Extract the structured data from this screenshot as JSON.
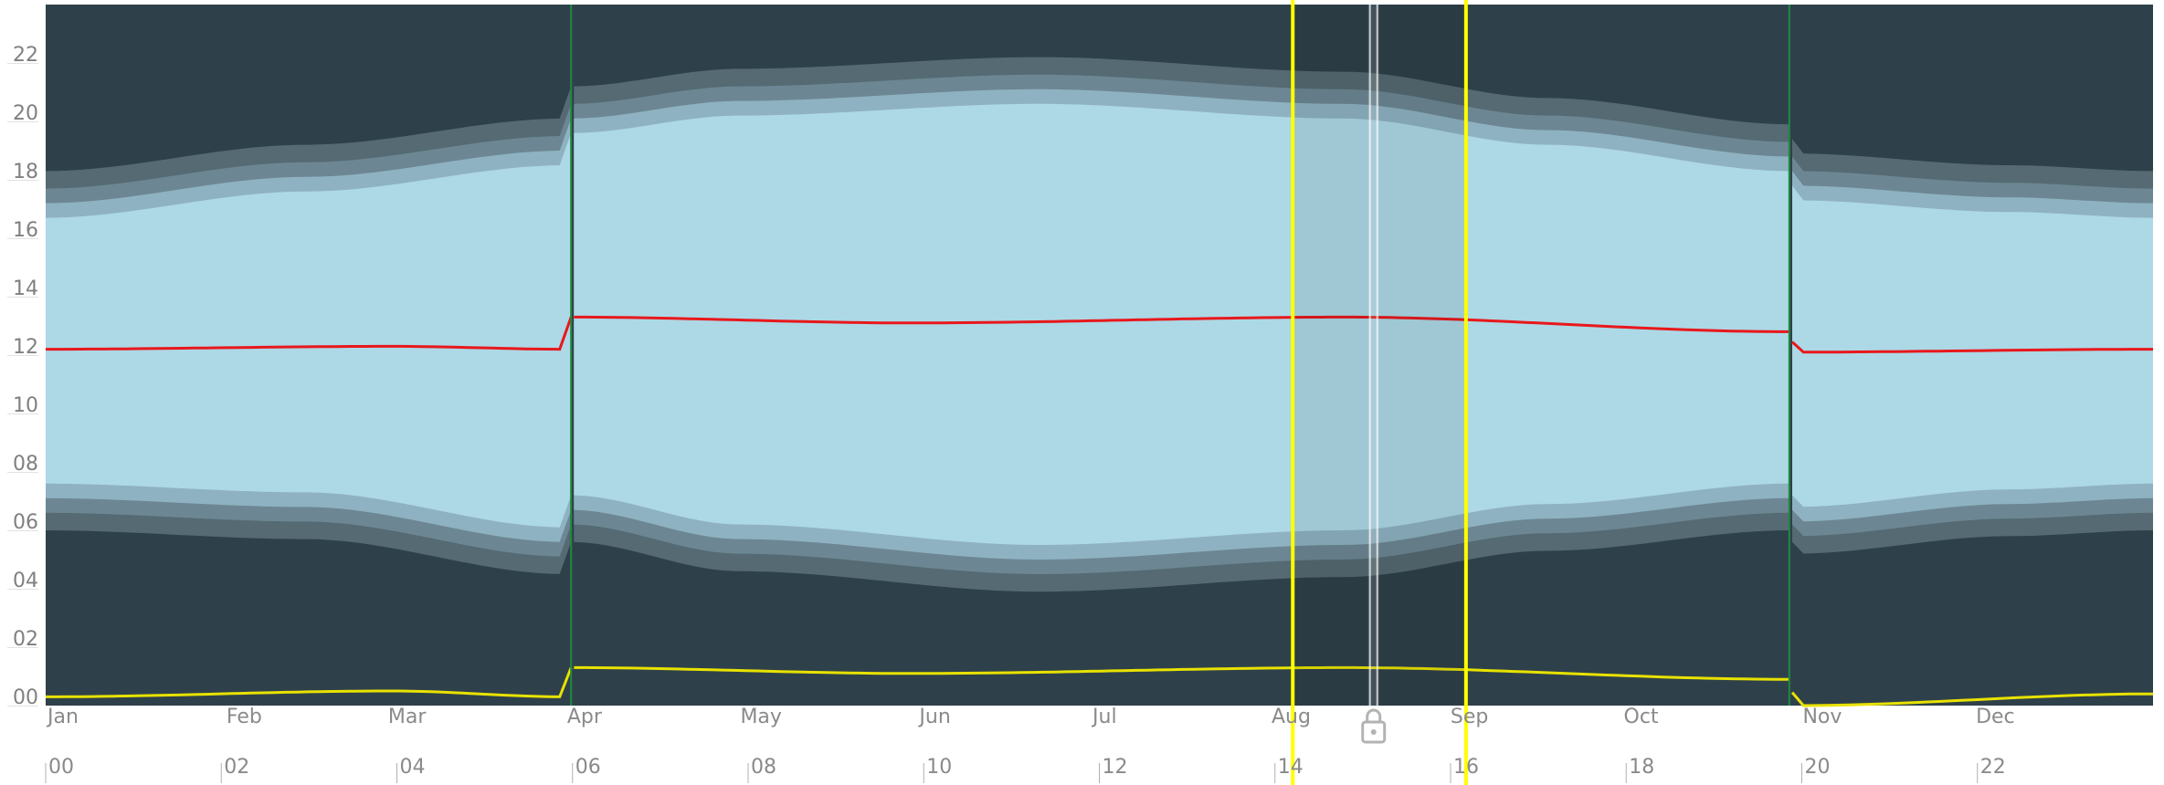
{
  "chart_data": {
    "type": "area",
    "title": "",
    "xlabel": "",
    "ylabel": "",
    "x_unit": "day_of_year",
    "ylim": [
      0,
      24
    ],
    "y_ticks": [
      "00",
      "02",
      "04",
      "06",
      "08",
      "10",
      "12",
      "14",
      "16",
      "18",
      "20",
      "22"
    ],
    "month_ticks": [
      "Jan",
      "Feb",
      "Mar",
      "Apr",
      "May",
      "Jun",
      "Jul",
      "Aug",
      "Sep",
      "Oct",
      "Nov",
      "Dec"
    ],
    "hour_ticks": [
      "00",
      "02",
      "04",
      "06",
      "08",
      "10",
      "12",
      "14",
      "16",
      "18",
      "20",
      "22"
    ],
    "timezone_changes_day": [
      91,
      302
    ],
    "series": [
      {
        "role": "sunrise",
        "x": [
          0,
          45,
          90,
          91,
          120,
          172,
          225,
          260,
          302,
          303,
          340,
          365
        ],
        "values": [
          7.6,
          7.3,
          6.1,
          7.2,
          6.2,
          5.5,
          6.0,
          6.9,
          7.6,
          6.8,
          7.4,
          7.6
        ]
      },
      {
        "role": "sunset",
        "x": [
          0,
          45,
          90,
          91,
          120,
          172,
          225,
          260,
          302,
          303,
          340,
          365
        ],
        "values": [
          16.7,
          17.6,
          18.5,
          19.6,
          20.2,
          20.6,
          20.1,
          19.2,
          18.3,
          17.3,
          16.9,
          16.7
        ]
      },
      {
        "role": "solar_noon",
        "x": [
          0,
          60,
          90,
          91,
          150,
          225,
          302,
          303,
          365
        ],
        "values": [
          12.2,
          12.3,
          12.2,
          13.3,
          13.1,
          13.3,
          12.8,
          12.1,
          12.2
        ]
      },
      {
        "role": "bottom_line",
        "x": [
          0,
          60,
          90,
          91,
          150,
          225,
          302,
          303,
          365
        ],
        "values": [
          0.3,
          0.5,
          0.3,
          1.3,
          1.1,
          1.3,
          0.9,
          0.0,
          0.4
        ]
      }
    ],
    "twilight_offsets_hours": [
      0.5,
      1.0,
      1.6
    ],
    "markers": {
      "lines_day": [
        216,
        246
      ],
      "now_day": 230
    },
    "colors": {
      "night": "#2e414a",
      "twilight_outer": "#556a72",
      "twilight_middle": "#6c8793",
      "twilight_inner": "#8fb2c2",
      "day": "#add8e6",
      "noon_line": "#e8181b",
      "bottom_line": "#e8e200",
      "marker": "#ffff00",
      "dst_boundary": "#1e8a3b",
      "axis_text": "#8a8a8a",
      "lock_icon": "#b3b3b3"
    }
  }
}
